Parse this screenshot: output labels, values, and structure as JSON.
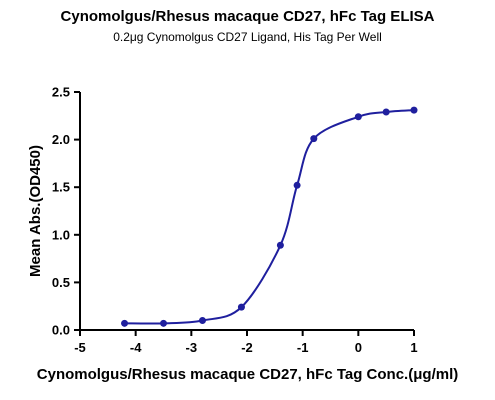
{
  "chart_data": {
    "type": "line",
    "title": "Cynomolgus/Rhesus macaque CD27, hFc Tag ELISA",
    "subtitle": "0.2μg Cynomolgus CD27 Ligand, His Tag Per Well",
    "xlabel": "Cynomolgus/Rhesus macaque CD27, hFc Tag Conc.(μg/ml)",
    "ylabel": "Mean Abs.(OD450)",
    "xlim": [
      -5,
      1
    ],
    "ylim": [
      0,
      2.5
    ],
    "x_ticks": [
      "-5",
      "-4",
      "-3",
      "-2",
      "-1",
      "0",
      "1"
    ],
    "y_ticks": [
      "0.0",
      "0.5",
      "1.0",
      "1.5",
      "2.0",
      "2.5"
    ],
    "series": [
      {
        "x": [
          -4.2,
          -3.5,
          -2.8,
          -2.1,
          -1.4,
          -1.1,
          -0.8,
          0.0,
          0.5,
          1.0
        ],
        "y": [
          0.07,
          0.07,
          0.1,
          0.24,
          0.89,
          1.52,
          2.01,
          2.24,
          2.29,
          2.31
        ],
        "color": "#1f1f9e"
      }
    ],
    "grid": false
  }
}
